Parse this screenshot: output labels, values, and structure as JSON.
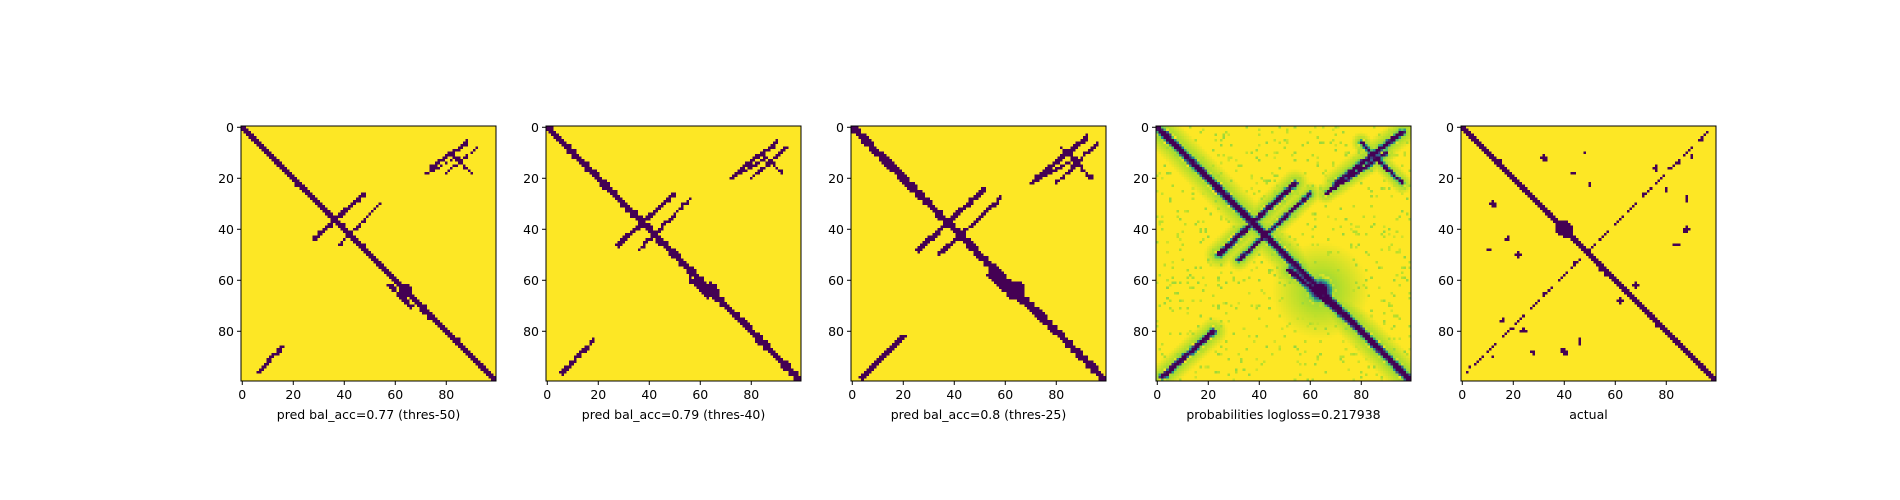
{
  "chart_data": [
    {
      "type": "heatmap",
      "xlabel": "pred bal_acc=0.77 (thres-50)",
      "x_ticks": [
        0,
        20,
        40,
        60,
        80
      ],
      "y_ticks": [
        0,
        20,
        40,
        60,
        80
      ],
      "xlim": [
        0,
        99
      ],
      "ylim": [
        99,
        0
      ],
      "colormap": "viridis",
      "values": "binary",
      "features": [
        {
          "kind": "diagonal",
          "width": 3.2
        },
        {
          "kind": "stroke",
          "from": [
            6,
            96
          ],
          "to": [
            16,
            86
          ],
          "width": 2.0
        },
        {
          "kind": "stroke",
          "from": [
            48,
            26
          ],
          "to": [
            28,
            44
          ],
          "width": 2.2
        },
        {
          "kind": "stroke",
          "from": [
            54,
            30
          ],
          "to": [
            38,
            46
          ],
          "width": 1.6
        },
        {
          "kind": "stroke",
          "from": [
            88,
            6
          ],
          "to": [
            74,
            16
          ],
          "width": 2.2
        },
        {
          "kind": "stroke",
          "from": [
            84,
            12
          ],
          "to": [
            72,
            18
          ],
          "width": 1.4
        },
        {
          "kind": "stroke",
          "from": [
            92,
            8
          ],
          "to": [
            80,
            18
          ],
          "width": 1.6
        },
        {
          "kind": "stroke",
          "from": [
            82,
            10
          ],
          "to": [
            90,
            18
          ],
          "width": 1.4
        },
        {
          "kind": "stroke",
          "from": [
            58,
            62
          ],
          "to": [
            66,
            70
          ],
          "width": 2.5
        },
        {
          "kind": "blob",
          "center": [
            64,
            64
          ],
          "r": 3.5
        }
      ]
    },
    {
      "type": "heatmap",
      "xlabel": "pred bal_acc=0.79 (thres-40)",
      "x_ticks": [
        0,
        20,
        40,
        60,
        80
      ],
      "y_ticks": [
        0,
        20,
        40,
        60,
        80
      ],
      "xlim": [
        0,
        99
      ],
      "ylim": [
        99,
        0
      ],
      "colormap": "viridis",
      "values": "binary",
      "features": [
        {
          "kind": "diagonal",
          "width": 3.6
        },
        {
          "kind": "stroke",
          "from": [
            6,
            96
          ],
          "to": [
            18,
            84
          ],
          "width": 2.4
        },
        {
          "kind": "stroke",
          "from": [
            50,
            26
          ],
          "to": [
            28,
            46
          ],
          "width": 2.4
        },
        {
          "kind": "stroke",
          "from": [
            56,
            28
          ],
          "to": [
            36,
            48
          ],
          "width": 1.8
        },
        {
          "kind": "stroke",
          "from": [
            90,
            6
          ],
          "to": [
            74,
            18
          ],
          "width": 2.4
        },
        {
          "kind": "stroke",
          "from": [
            86,
            12
          ],
          "to": [
            72,
            20
          ],
          "width": 1.6
        },
        {
          "kind": "stroke",
          "from": [
            94,
            8
          ],
          "to": [
            80,
            20
          ],
          "width": 1.8
        },
        {
          "kind": "stroke",
          "from": [
            84,
            10
          ],
          "to": [
            92,
            18
          ],
          "width": 1.6
        },
        {
          "kind": "stroke",
          "from": [
            56,
            60
          ],
          "to": [
            70,
            70
          ],
          "width": 3.0
        },
        {
          "kind": "blob",
          "center": [
            64,
            64
          ],
          "r": 4.2
        }
      ]
    },
    {
      "type": "heatmap",
      "xlabel": "pred bal_acc=0.8 (thres-25)",
      "x_ticks": [
        0,
        20,
        40,
        60,
        80
      ],
      "y_ticks": [
        0,
        20,
        40,
        60,
        80
      ],
      "xlim": [
        0,
        99
      ],
      "ylim": [
        99,
        0
      ],
      "colormap": "viridis",
      "values": "binary",
      "features": [
        {
          "kind": "diagonal",
          "width": 4.2
        },
        {
          "kind": "stroke",
          "from": [
            4,
            98
          ],
          "to": [
            20,
            82
          ],
          "width": 2.8
        },
        {
          "kind": "stroke",
          "from": [
            52,
            24
          ],
          "to": [
            26,
            48
          ],
          "width": 2.8
        },
        {
          "kind": "stroke",
          "from": [
            58,
            28
          ],
          "to": [
            34,
            50
          ],
          "width": 2.0
        },
        {
          "kind": "stroke",
          "from": [
            92,
            4
          ],
          "to": [
            72,
            20
          ],
          "width": 2.8
        },
        {
          "kind": "stroke",
          "from": [
            88,
            12
          ],
          "to": [
            70,
            22
          ],
          "width": 1.8
        },
        {
          "kind": "stroke",
          "from": [
            96,
            6
          ],
          "to": [
            80,
            22
          ],
          "width": 2.0
        },
        {
          "kind": "stroke",
          "from": [
            82,
            8
          ],
          "to": [
            94,
            20
          ],
          "width": 1.8
        },
        {
          "kind": "stroke",
          "from": [
            54,
            58
          ],
          "to": [
            74,
            74
          ],
          "width": 3.6
        },
        {
          "kind": "blob",
          "center": [
            64,
            64
          ],
          "r": 5.2
        }
      ]
    },
    {
      "type": "heatmap",
      "xlabel": "probabilities logloss=0.217938",
      "x_ticks": [
        0,
        20,
        40,
        60,
        80
      ],
      "y_ticks": [
        0,
        20,
        40,
        60,
        80
      ],
      "xlim": [
        0,
        99
      ],
      "ylim": [
        99,
        0
      ],
      "colormap": "viridis",
      "values": "continuous",
      "features": [
        {
          "kind": "diagonal",
          "width": 4.5
        },
        {
          "kind": "stroke",
          "from": [
            2,
            98
          ],
          "to": [
            22,
            80
          ],
          "width": 3.5
        },
        {
          "kind": "stroke",
          "from": [
            54,
            22
          ],
          "to": [
            24,
            50
          ],
          "width": 3.5
        },
        {
          "kind": "stroke",
          "from": [
            60,
            26
          ],
          "to": [
            32,
            52
          ],
          "width": 2.8
        },
        {
          "kind": "stroke",
          "from": [
            96,
            2
          ],
          "to": [
            70,
            22
          ],
          "width": 3.5
        },
        {
          "kind": "stroke",
          "from": [
            90,
            10
          ],
          "to": [
            66,
            26
          ],
          "width": 2.6
        },
        {
          "kind": "stroke",
          "from": [
            80,
            6
          ],
          "to": [
            96,
            22
          ],
          "width": 2.6
        },
        {
          "kind": "stroke",
          "from": [
            52,
            56
          ],
          "to": [
            78,
            78
          ],
          "width": 4.0
        },
        {
          "kind": "blob",
          "center": [
            64,
            64
          ],
          "r": 6.0
        }
      ]
    },
    {
      "type": "heatmap",
      "xlabel": "actual",
      "x_ticks": [
        0,
        20,
        40,
        60,
        80
      ],
      "y_ticks": [
        0,
        20,
        40,
        60,
        80
      ],
      "xlim": [
        0,
        99
      ],
      "ylim": [
        99,
        0
      ],
      "colormap": "viridis",
      "values": "binary",
      "features": [
        {
          "kind": "diagonal",
          "width": 3.2
        },
        {
          "kind": "antidiagonal",
          "from": [
            2,
            96
          ],
          "to": [
            96,
            2
          ],
          "width": 1.2,
          "broken": true
        },
        {
          "kind": "blob",
          "center": [
            40,
            40
          ],
          "r": 4.5
        },
        {
          "kind": "blob",
          "center": [
            32,
            12
          ],
          "r": 1.8
        },
        {
          "kind": "blob",
          "center": [
            12,
            30
          ],
          "r": 1.8
        },
        {
          "kind": "blob",
          "center": [
            88,
            40
          ],
          "r": 1.8
        },
        {
          "kind": "blob",
          "center": [
            40,
            88
          ],
          "r": 1.8
        },
        {
          "kind": "blob",
          "center": [
            18,
            44
          ],
          "r": 1.4
        },
        {
          "kind": "blob",
          "center": [
            44,
            18
          ],
          "r": 1.4
        },
        {
          "kind": "blob",
          "center": [
            22,
            50
          ],
          "r": 1.4
        },
        {
          "kind": "blob",
          "center": [
            50,
            22
          ],
          "r": 1.4
        },
        {
          "kind": "blob",
          "center": [
            10,
            48
          ],
          "r": 1.2
        },
        {
          "kind": "blob",
          "center": [
            48,
            10
          ],
          "r": 1.2
        },
        {
          "kind": "blob",
          "center": [
            68,
            62
          ],
          "r": 1.6
        },
        {
          "kind": "blob",
          "center": [
            62,
            68
          ],
          "r": 1.6
        },
        {
          "kind": "blob",
          "center": [
            80,
            24
          ],
          "r": 1.4
        },
        {
          "kind": "blob",
          "center": [
            24,
            80
          ],
          "r": 1.4
        },
        {
          "kind": "blob",
          "center": [
            76,
            16
          ],
          "r": 1.4
        },
        {
          "kind": "blob",
          "center": [
            16,
            76
          ],
          "r": 1.4
        },
        {
          "kind": "blob",
          "center": [
            90,
            12
          ],
          "r": 1.2
        },
        {
          "kind": "blob",
          "center": [
            12,
            90
          ],
          "r": 1.2
        },
        {
          "kind": "blob",
          "center": [
            84,
            46
          ],
          "r": 1.3
        },
        {
          "kind": "blob",
          "center": [
            46,
            84
          ],
          "r": 1.3
        },
        {
          "kind": "blob",
          "center": [
            28,
            88
          ],
          "r": 1.2
        },
        {
          "kind": "blob",
          "center": [
            88,
            28
          ],
          "r": 1.2
        }
      ]
    }
  ],
  "colors": {
    "background": "#fde725",
    "foreground": "#440154",
    "mid": "#21918c",
    "light": "#b5de2b"
  }
}
